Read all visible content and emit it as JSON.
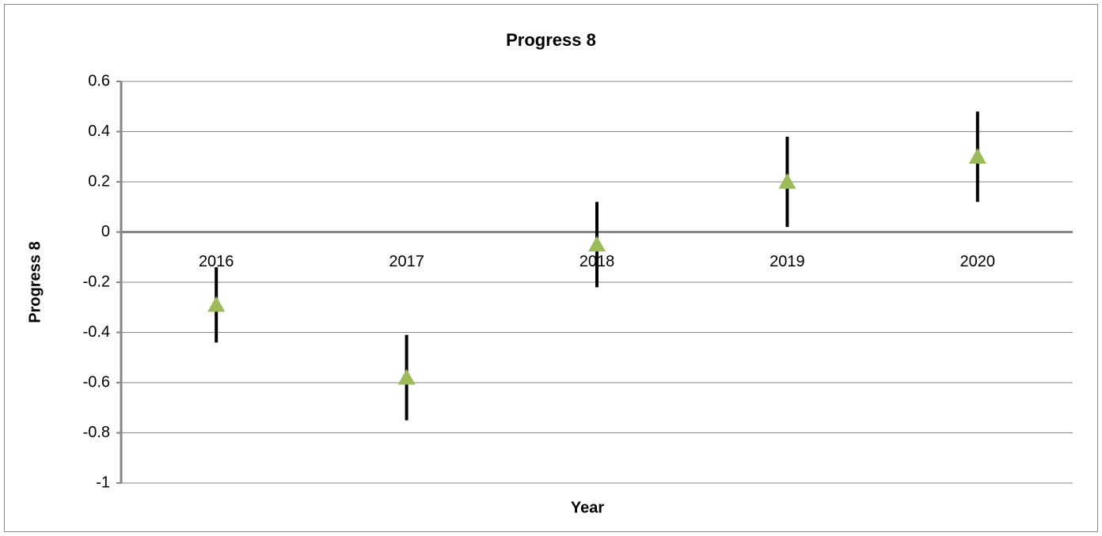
{
  "chart_data": {
    "type": "errorbar",
    "title": "Progress 8",
    "x_label": "Year",
    "y_label": "Progress 8",
    "categories": [
      "2016",
      "2017",
      "2018",
      "2019",
      "2020"
    ],
    "values": [
      -0.29,
      -0.58,
      -0.05,
      0.2,
      0.3
    ],
    "errors": [
      0.15,
      0.17,
      0.17,
      0.18,
      0.18
    ],
    "color": "#9bbb59",
    "error_color": "#000000",
    "ylim": [
      -1,
      0.6
    ],
    "yticks": [
      -1,
      -0.8,
      -0.6,
      -0.4,
      -0.2,
      0,
      0.2,
      0.4,
      0.6
    ],
    "grid": true
  }
}
